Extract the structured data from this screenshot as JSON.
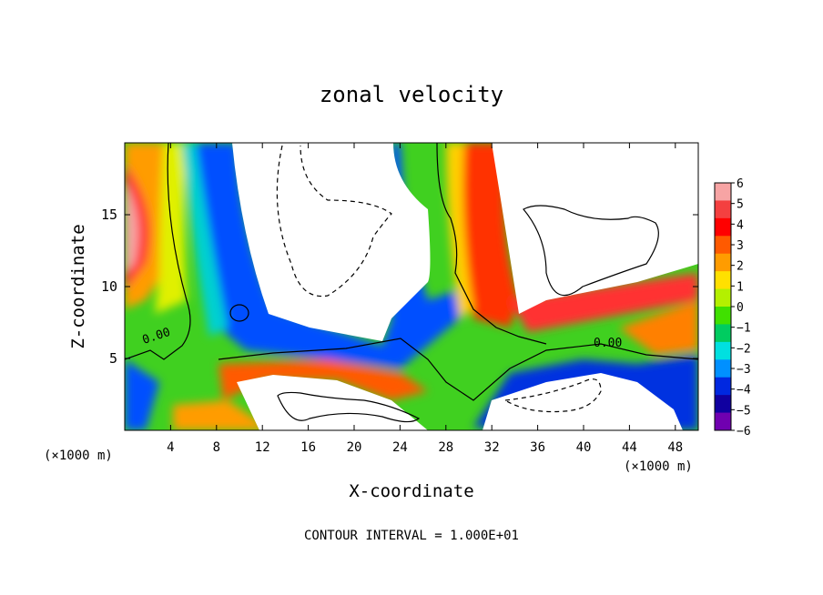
{
  "chart_data": {
    "type": "heatmap",
    "title": "zonal velocity",
    "xlabel": "X-coordinate",
    "ylabel": "Z-coordinate",
    "x_unit_left": "(×1000 m)",
    "x_unit_right": "(×1000 m)",
    "footer": "CONTOUR INTERVAL = 1.000E+01",
    "xlim": [
      0,
      50
    ],
    "ylim": [
      0,
      20
    ],
    "x_ticks": [
      4,
      8,
      12,
      16,
      20,
      24,
      28,
      32,
      36,
      40,
      44,
      48
    ],
    "y_ticks": [
      5,
      10,
      15
    ],
    "colorbar": {
      "min": -6,
      "max": 6,
      "ticks": [
        "6",
        "5",
        "4",
        "3",
        "2",
        "1",
        "0",
        "−1",
        "−2",
        "−3",
        "−4",
        "−5",
        "−6"
      ],
      "colors": [
        "#f7a4a4",
        "#f44040",
        "#ff0000",
        "#ff5a00",
        "#ff9c00",
        "#ffe000",
        "#b4f000",
        "#40e000",
        "#00cc60",
        "#00e0e0",
        "#0090ff",
        "#0028e0",
        "#1000a0",
        "#7000b0"
      ]
    },
    "contour_labels": [
      "0.00",
      "0.00"
    ],
    "colors": {
      "zero_contour": "#000000",
      "positive_contour": "#000000",
      "negative_contour": "#000000"
    }
  }
}
